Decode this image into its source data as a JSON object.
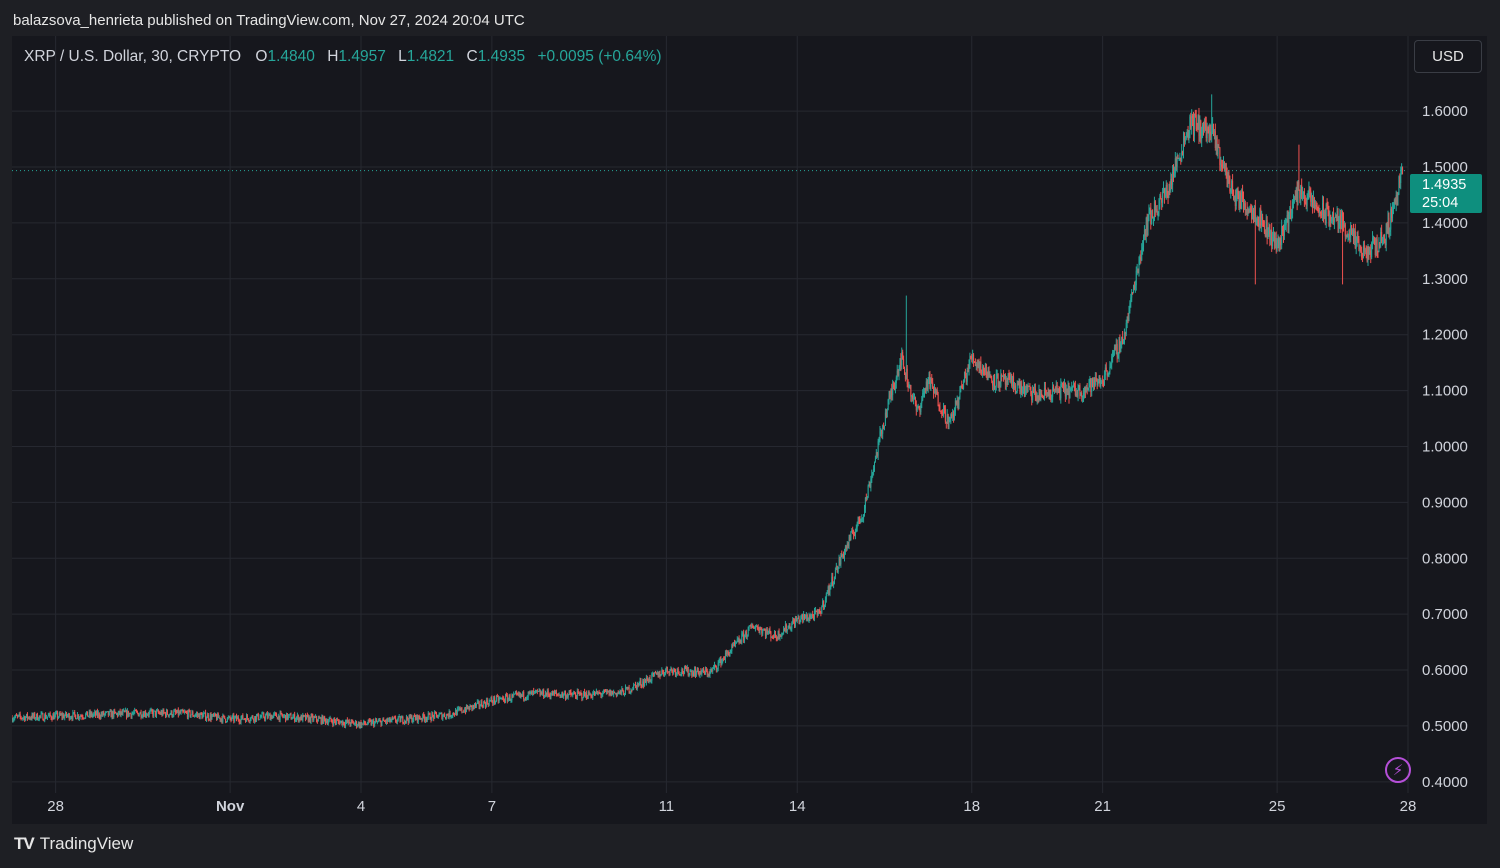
{
  "header": {
    "publisher_line": "balazsova_henrieta published on TradingView.com, Nov 27, 2024 20:04 UTC"
  },
  "legend": {
    "symbol": "XRP / U.S. Dollar, 30, CRYPTO",
    "open_label": "O",
    "open": "1.4840",
    "high_label": "H",
    "high": "1.4957",
    "low_label": "L",
    "low": "1.4821",
    "close_label": "C",
    "close": "1.4935",
    "change": "+0.0095 (+0.64%)"
  },
  "currency_button": "USD",
  "price_tag": {
    "price": "1.4935",
    "countdown": "25:04"
  },
  "footer": {
    "brand": "TradingView",
    "logo_mark": "TV"
  },
  "colors": {
    "up": "#26a69a",
    "down": "#ef5350",
    "background": "#16171d",
    "grid": "#262830",
    "price_line": "#26a69a",
    "alert": "#b54fd8"
  },
  "icons": {
    "alert": "lightning-bolt-icon"
  },
  "chart_data": {
    "type": "candlestick",
    "title": "XRP / U.S. Dollar, 30, CRYPTO",
    "interval": "30",
    "currency": "USD",
    "ylim": [
      0.38,
      1.67
    ],
    "y_ticks": [
      "1.6000",
      "1.5000",
      "1.4000",
      "1.3000",
      "1.2000",
      "1.1000",
      "1.0000",
      "0.9000",
      "0.8000",
      "0.7000",
      "0.6000",
      "0.5000",
      "0.4000"
    ],
    "x_ticks": [
      "28",
      "Nov",
      "4",
      "7",
      "11",
      "14",
      "18",
      "21",
      "25",
      "28"
    ],
    "x_tick_dates": [
      "2024-10-28",
      "2024-11-01",
      "2024-11-04",
      "2024-11-07",
      "2024-11-11",
      "2024-11-14",
      "2024-11-18",
      "2024-11-21",
      "2024-11-25",
      "2024-11-28"
    ],
    "x_range": [
      "2024-10-27",
      "2024-11-28"
    ],
    "last_price": 1.4935,
    "grid": true,
    "close_path": [
      [
        "2024-10-27",
        0.515
      ],
      [
        "2024-10-29",
        0.52
      ],
      [
        "2024-10-30",
        0.523
      ],
      [
        "2024-10-31",
        0.522
      ],
      [
        "2024-11-01",
        0.512
      ],
      [
        "2024-11-02",
        0.518
      ],
      [
        "2024-11-03",
        0.512
      ],
      [
        "2024-11-04",
        0.503
      ],
      [
        "2024-11-05",
        0.512
      ],
      [
        "2024-11-06",
        0.52
      ],
      [
        "2024-11-07",
        0.545
      ],
      [
        "2024-11-08",
        0.558
      ],
      [
        "2024-11-09",
        0.555
      ],
      [
        "2024-11-10",
        0.56
      ],
      [
        "2024-11-11",
        0.6
      ],
      [
        "2024-11-12",
        0.595
      ],
      [
        "2024-11-13",
        0.68
      ],
      [
        "2024-11-13T12:00",
        0.66
      ],
      [
        "2024-11-14",
        0.69
      ],
      [
        "2024-11-14T12:00",
        0.7
      ],
      [
        "2024-11-15",
        0.8
      ],
      [
        "2024-11-15T12:00",
        0.88
      ],
      [
        "2024-11-16",
        1.05
      ],
      [
        "2024-11-16T09:00",
        1.16
      ],
      [
        "2024-11-16T18:00",
        1.06
      ],
      [
        "2024-11-17",
        1.12
      ],
      [
        "2024-11-17T12:00",
        1.04
      ],
      [
        "2024-11-18",
        1.16
      ],
      [
        "2024-11-18T12:00",
        1.12
      ],
      [
        "2024-11-19",
        1.11
      ],
      [
        "2024-11-19T12:00",
        1.09
      ],
      [
        "2024-11-20",
        1.1
      ],
      [
        "2024-11-20T12:00",
        1.1
      ],
      [
        "2024-11-21",
        1.12
      ],
      [
        "2024-11-21T12:00",
        1.2
      ],
      [
        "2024-11-22",
        1.4
      ],
      [
        "2024-11-22T12:00",
        1.46
      ],
      [
        "2024-11-23",
        1.58
      ],
      [
        "2024-11-23T12:00",
        1.56
      ],
      [
        "2024-11-24",
        1.45
      ],
      [
        "2024-11-24T12:00",
        1.42
      ],
      [
        "2024-11-25",
        1.36
      ],
      [
        "2024-11-25T12:00",
        1.46
      ],
      [
        "2024-11-26",
        1.42
      ],
      [
        "2024-11-26T12:00",
        1.4
      ],
      [
        "2024-11-27",
        1.34
      ],
      [
        "2024-11-27T12:00",
        1.38
      ],
      [
        "2024-11-27T21:00",
        1.4935
      ]
    ],
    "notable_extremes": [
      {
        "date": "2024-11-16",
        "high": 1.27
      },
      {
        "date": "2024-11-23",
        "high": 1.63
      },
      {
        "date": "2024-11-24",
        "low": 1.29
      },
      {
        "date": "2024-11-25",
        "high": 1.54
      },
      {
        "date": "2024-11-26",
        "low": 1.29
      }
    ]
  }
}
